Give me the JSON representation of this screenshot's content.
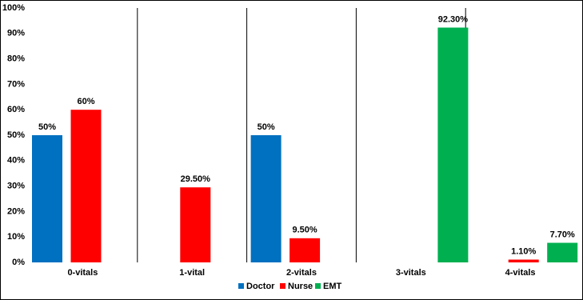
{
  "chart_data": {
    "type": "bar",
    "categories": [
      "0-vitals",
      "1-vital",
      "2-vitals",
      "3-vitals",
      "4-vitals"
    ],
    "series": [
      {
        "name": "Doctor",
        "color": "#0070c0",
        "values": [
          50,
          null,
          50,
          null,
          null
        ],
        "value_labels": [
          "50%",
          null,
          "50%",
          null,
          null
        ]
      },
      {
        "name": "Nurse",
        "color": "#ff0000",
        "values": [
          60,
          29.5,
          9.5,
          null,
          1.1
        ],
        "value_labels": [
          "60%",
          "29.50%",
          "9.50%",
          null,
          "1.10%"
        ]
      },
      {
        "name": "EMT",
        "color": "#00b050",
        "values": [
          null,
          null,
          null,
          92.3,
          7.7
        ],
        "value_labels": [
          null,
          null,
          null,
          "92.30%",
          "7.70%"
        ]
      }
    ],
    "ylim": [
      0,
      100
    ],
    "yticks": [
      {
        "value": 0,
        "label": "0%"
      },
      {
        "value": 10,
        "label": "10%"
      },
      {
        "value": 20,
        "label": "20%"
      },
      {
        "value": 30,
        "label": "30%"
      },
      {
        "value": 40,
        "label": "40%"
      },
      {
        "value": 50,
        "label": "50%"
      },
      {
        "value": 60,
        "label": "60%"
      },
      {
        "value": 70,
        "label": "70%"
      },
      {
        "value": 80,
        "label": "80%"
      },
      {
        "value": 90,
        "label": "90%"
      },
      {
        "value": 100,
        "label": "100%"
      }
    ],
    "grid": false,
    "legend": "bottom"
  }
}
